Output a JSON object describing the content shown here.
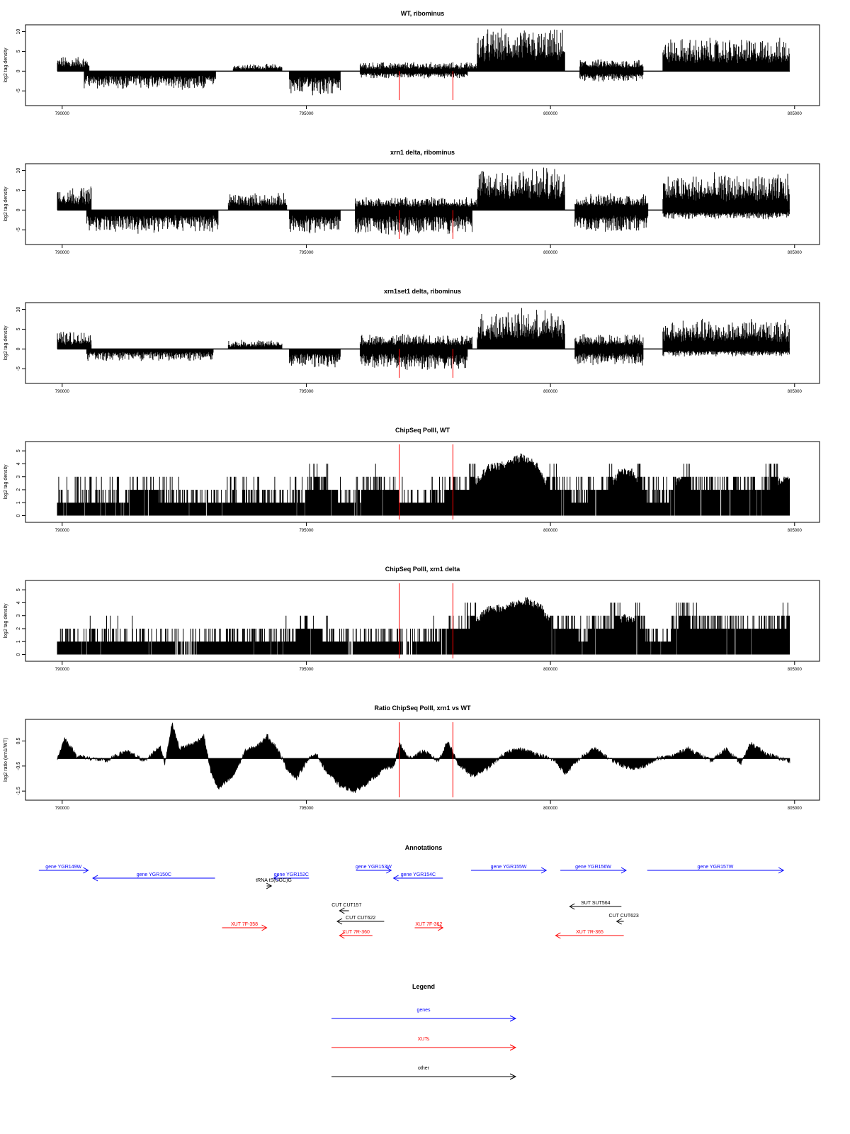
{
  "colors": {
    "gene": "#0000ff",
    "xut": "#ff0000",
    "other": "#000000",
    "marker": "#ff0000",
    "bars": "#000000"
  },
  "chart_data": [
    {
      "type": "bar",
      "title": "WT, ribominus",
      "ylabel": "log2 tag density",
      "xlim": [
        789800,
        805500
      ],
      "ylim": [
        -8,
        11
      ],
      "x_ticks": [
        790000,
        795000,
        800000,
        805000
      ],
      "y_ticks": [
        -5,
        0,
        5,
        10
      ],
      "markers": [
        796800,
        797900
      ],
      "segments": [
        {
          "start": 789800,
          "end": 790450,
          "sign": 1,
          "level": 2.5
        },
        {
          "start": 790350,
          "end": 793050,
          "sign": -1,
          "level": 3
        },
        {
          "start": 793400,
          "end": 794400,
          "sign": 1,
          "level": 1.2
        },
        {
          "start": 794550,
          "end": 795600,
          "sign": -1,
          "level": 4
        },
        {
          "start": 796000,
          "end": 798400,
          "sign": 1,
          "level": 1.5
        },
        {
          "start": 796000,
          "end": 798200,
          "sign": -1,
          "level": 1.2
        },
        {
          "start": 798400,
          "end": 800200,
          "sign": 1,
          "level": 7
        },
        {
          "start": 800500,
          "end": 801800,
          "sign": 1,
          "level": 2
        },
        {
          "start": 800500,
          "end": 801800,
          "sign": -1,
          "level": 1.8
        },
        {
          "start": 802200,
          "end": 804800,
          "sign": 1,
          "level": 5.5
        }
      ]
    },
    {
      "type": "bar",
      "title": "xrn1 delta, ribominus",
      "ylabel": "log2 tag density",
      "xlim": [
        789800,
        805500
      ],
      "ylim": [
        -8,
        11
      ],
      "x_ticks": [
        790000,
        795000,
        800000,
        805000
      ],
      "y_ticks": [
        -5,
        0,
        5,
        10
      ],
      "markers": [
        796800,
        797900
      ],
      "segments": [
        {
          "start": 789800,
          "end": 790500,
          "sign": 1,
          "level": 4
        },
        {
          "start": 790400,
          "end": 793100,
          "sign": -1,
          "level": 3.8
        },
        {
          "start": 793300,
          "end": 794500,
          "sign": 1,
          "level": 2.8
        },
        {
          "start": 794550,
          "end": 795600,
          "sign": -1,
          "level": 4
        },
        {
          "start": 795900,
          "end": 798400,
          "sign": 1,
          "level": 2.2
        },
        {
          "start": 795900,
          "end": 798300,
          "sign": -1,
          "level": 4.2
        },
        {
          "start": 798400,
          "end": 800200,
          "sign": 1,
          "level": 7.2
        },
        {
          "start": 800400,
          "end": 801900,
          "sign": 1,
          "level": 2.8
        },
        {
          "start": 800400,
          "end": 801900,
          "sign": -1,
          "level": 3.8
        },
        {
          "start": 802200,
          "end": 804800,
          "sign": 1,
          "level": 6
        },
        {
          "start": 802200,
          "end": 804800,
          "sign": -1,
          "level": 1.5
        }
      ]
    },
    {
      "type": "bar",
      "title": "xrn1set1 delta, ribominus",
      "ylabel": "log2 tag density",
      "xlim": [
        789800,
        805500
      ],
      "ylim": [
        -8,
        11
      ],
      "x_ticks": [
        790000,
        795000,
        800000,
        805000
      ],
      "y_ticks": [
        -5,
        0,
        5,
        10
      ],
      "markers": [
        796800,
        797900
      ],
      "segments": [
        {
          "start": 789800,
          "end": 790500,
          "sign": 1,
          "level": 3
        },
        {
          "start": 790400,
          "end": 793000,
          "sign": -1,
          "level": 2
        },
        {
          "start": 793300,
          "end": 794400,
          "sign": 1,
          "level": 1.5
        },
        {
          "start": 794550,
          "end": 795600,
          "sign": -1,
          "level": 3
        },
        {
          "start": 796000,
          "end": 798300,
          "sign": 1,
          "level": 2.5
        },
        {
          "start": 796000,
          "end": 798200,
          "sign": -1,
          "level": 3.5
        },
        {
          "start": 798400,
          "end": 800200,
          "sign": 1,
          "level": 6.5
        },
        {
          "start": 800400,
          "end": 801800,
          "sign": 1,
          "level": 2.5
        },
        {
          "start": 800400,
          "end": 801800,
          "sign": -1,
          "level": 2.8
        },
        {
          "start": 802200,
          "end": 804800,
          "sign": 1,
          "level": 5
        },
        {
          "start": 802200,
          "end": 804800,
          "sign": -1,
          "level": 1.2
        }
      ]
    },
    {
      "type": "bar",
      "title": "ChipSeq PolII, WT",
      "ylabel": "log2 tag density",
      "xlim": [
        789800,
        805500
      ],
      "ylim": [
        -0.3,
        5.5
      ],
      "x_ticks": [
        790000,
        795000,
        800000,
        805000
      ],
      "y_ticks": [
        0,
        1,
        2,
        3,
        4,
        5
      ],
      "markers": [
        796800,
        797900
      ],
      "profile": [
        [
          789800,
          0.9
        ],
        [
          790800,
          1.2
        ],
        [
          791800,
          1.3
        ],
        [
          792600,
          0.7
        ],
        [
          793600,
          1.2
        ],
        [
          794400,
          0.9
        ],
        [
          794800,
          1.0
        ],
        [
          795100,
          2.2
        ],
        [
          795400,
          1.6
        ],
        [
          795800,
          0.6
        ],
        [
          796200,
          1.8
        ],
        [
          796600,
          1.6
        ],
        [
          797000,
          0.5
        ],
        [
          797600,
          1.1
        ],
        [
          798200,
          1.8
        ],
        [
          798600,
          3.6
        ],
        [
          799000,
          3.9
        ],
        [
          799300,
          4.5
        ],
        [
          799600,
          3.9
        ],
        [
          799900,
          2.0
        ],
        [
          800400,
          1.1
        ],
        [
          801000,
          1.4
        ],
        [
          801300,
          3.3
        ],
        [
          801600,
          3.3
        ],
        [
          801800,
          1.2
        ],
        [
          802300,
          1.0
        ],
        [
          802500,
          2.8
        ],
        [
          802800,
          1.7
        ],
        [
          803400,
          1.5
        ],
        [
          804200,
          1.6
        ],
        [
          804600,
          2.6
        ],
        [
          804800,
          2.8
        ]
      ]
    },
    {
      "type": "bar",
      "title": "ChipSeq PolII, xrn1 delta",
      "ylabel": "log2 tag density",
      "xlim": [
        789800,
        805500
      ],
      "ylim": [
        -0.3,
        5.5
      ],
      "x_ticks": [
        790000,
        795000,
        800000,
        805000
      ],
      "y_ticks": [
        0,
        1,
        2,
        3,
        4,
        5
      ],
      "markers": [
        796800,
        797900
      ],
      "profile": [
        [
          789800,
          0.6
        ],
        [
          790800,
          1.0
        ],
        [
          791600,
          0.8
        ],
        [
          792400,
          0.3
        ],
        [
          793300,
          0.7
        ],
        [
          794400,
          0.8
        ],
        [
          794900,
          1.5
        ],
        [
          795300,
          1.2
        ],
        [
          795800,
          0.3
        ],
        [
          796200,
          1.0
        ],
        [
          796600,
          0.6
        ],
        [
          797000,
          0.3
        ],
        [
          797600,
          1.2
        ],
        [
          798200,
          1.8
        ],
        [
          798600,
          3.4
        ],
        [
          799000,
          3.6
        ],
        [
          799400,
          4.1
        ],
        [
          799700,
          3.7
        ],
        [
          800000,
          1.8
        ],
        [
          800600,
          1.1
        ],
        [
          801200,
          2.0
        ],
        [
          801400,
          2.8
        ],
        [
          801700,
          2.4
        ],
        [
          801900,
          0.8
        ],
        [
          802300,
          0.7
        ],
        [
          802600,
          2.4
        ],
        [
          803000,
          1.6
        ],
        [
          803800,
          1.4
        ],
        [
          804400,
          1.4
        ],
        [
          804800,
          2.2
        ]
      ]
    },
    {
      "type": "area",
      "title": "Ratio ChipSeq PolII, xrn1 vs WT",
      "ylabel": "log2 ratio (xrn1/WT)",
      "xlim": [
        789800,
        805500
      ],
      "ylim": [
        -1.75,
        1.25
      ],
      "x_ticks": [
        790000,
        795000,
        800000,
        805000
      ],
      "y_ticks": [
        -1.5,
        -0.5,
        0.5
      ],
      "markers": [
        796800,
        797900
      ],
      "profile": [
        [
          789800,
          -0.2
        ],
        [
          789950,
          0.6
        ],
        [
          790200,
          -0.1
        ],
        [
          790800,
          -0.3
        ],
        [
          791200,
          0.1
        ],
        [
          791600,
          -0.3
        ],
        [
          791900,
          0.3
        ],
        [
          792000,
          -0.4
        ],
        [
          792150,
          1.2
        ],
        [
          792300,
          0.2
        ],
        [
          792600,
          0.4
        ],
        [
          792800,
          0.7
        ],
        [
          792950,
          -0.8
        ],
        [
          793100,
          -1.4
        ],
        [
          793400,
          -0.9
        ],
        [
          793650,
          0.1
        ],
        [
          793900,
          0.3
        ],
        [
          794100,
          0.7
        ],
        [
          794300,
          0.2
        ],
        [
          794500,
          -0.6
        ],
        [
          794700,
          -1.0
        ],
        [
          794900,
          -0.3
        ],
        [
          795100,
          0.0
        ],
        [
          795300,
          -0.7
        ],
        [
          795600,
          -1.3
        ],
        [
          795900,
          -1.5
        ],
        [
          796200,
          -1.1
        ],
        [
          796500,
          -0.6
        ],
        [
          796700,
          -0.5
        ],
        [
          796800,
          0.4
        ],
        [
          797000,
          -0.2
        ],
        [
          797300,
          0.1
        ],
        [
          797600,
          -0.3
        ],
        [
          797800,
          0.5
        ],
        [
          798000,
          -0.4
        ],
        [
          798300,
          -0.9
        ],
        [
          798600,
          -0.6
        ],
        [
          798900,
          -0.1
        ],
        [
          799200,
          0.2
        ],
        [
          799600,
          0.0
        ],
        [
          800000,
          -0.3
        ],
        [
          800200,
          -0.8
        ],
        [
          800500,
          -0.2
        ],
        [
          800800,
          0.2
        ],
        [
          801100,
          -0.2
        ],
        [
          801400,
          -0.5
        ],
        [
          801700,
          -0.6
        ],
        [
          801900,
          -0.4
        ],
        [
          802100,
          -0.2
        ],
        [
          802400,
          -0.1
        ],
        [
          802700,
          0.2
        ],
        [
          802900,
          0.0
        ],
        [
          803200,
          -0.3
        ],
        [
          803500,
          0.2
        ],
        [
          803800,
          -0.4
        ],
        [
          804000,
          0.4
        ],
        [
          804300,
          0.0
        ],
        [
          804600,
          -0.2
        ],
        [
          804800,
          -0.3
        ]
      ]
    }
  ],
  "annotations": {
    "title": "Annotations",
    "items": [
      {
        "label": "gene YGR149W",
        "type": "gene",
        "start": 789300,
        "end": 790350,
        "dir": 1,
        "row": 1
      },
      {
        "label": "gene YGR150C",
        "type": "gene",
        "start": 790450,
        "end": 793050,
        "dir": -1,
        "row": 2
      },
      {
        "label": "gene YGR152C",
        "type": "gene",
        "start": 794300,
        "end": 795050,
        "dir": -1,
        "row": 2
      },
      {
        "label": "gene YGR153W",
        "type": "gene",
        "start": 796050,
        "end": 796800,
        "dir": 1,
        "row": 1
      },
      {
        "label": "gene YGR154C",
        "type": "gene",
        "start": 796850,
        "end": 797900,
        "dir": -1,
        "row": 2
      },
      {
        "label": "gene YGR155W",
        "type": "gene",
        "start": 798500,
        "end": 800100,
        "dir": 1,
        "row": 1
      },
      {
        "label": "gene YGR156W",
        "type": "gene",
        "start": 800400,
        "end": 801800,
        "dir": 1,
        "row": 1
      },
      {
        "label": "gene YGR157W",
        "type": "gene",
        "start": 802250,
        "end": 805150,
        "dir": 1,
        "row": 1
      },
      {
        "label": "tRNA tS(UGC)G",
        "type": "other",
        "start": 794150,
        "end": 794250,
        "dir": 1,
        "row": 3
      },
      {
        "label": "SUT SUT564",
        "type": "other",
        "start": 800600,
        "end": 801700,
        "dir": -1,
        "row": 5
      },
      {
        "label": "CUT CUT157",
        "type": "other",
        "start": 795700,
        "end": 795900,
        "dir": -1,
        "row": 6
      },
      {
        "label": "CUT CUT622",
        "type": "other",
        "start": 795650,
        "end": 796650,
        "dir": -1,
        "row": 7
      },
      {
        "label": "CUT CUT623",
        "type": "other",
        "start": 801600,
        "end": 801750,
        "dir": -1,
        "row": 7
      },
      {
        "label": "XUT 7F-358",
        "type": "xut",
        "start": 793200,
        "end": 794150,
        "dir": 1,
        "row": 8
      },
      {
        "label": "XUT 7R-360",
        "type": "xut",
        "start": 795700,
        "end": 796400,
        "dir": -1,
        "row": 9
      },
      {
        "label": "XUT 7F-362",
        "type": "xut",
        "start": 797300,
        "end": 797900,
        "dir": 1,
        "row": 8
      },
      {
        "label": "XUT 7R-365",
        "type": "xut",
        "start": 800300,
        "end": 801750,
        "dir": -1,
        "row": 9
      }
    ]
  },
  "legend": {
    "title": "Legend",
    "items": [
      {
        "label": "genes",
        "type": "gene"
      },
      {
        "label": "XUTs",
        "type": "xut"
      },
      {
        "label": "other",
        "type": "other"
      }
    ]
  }
}
